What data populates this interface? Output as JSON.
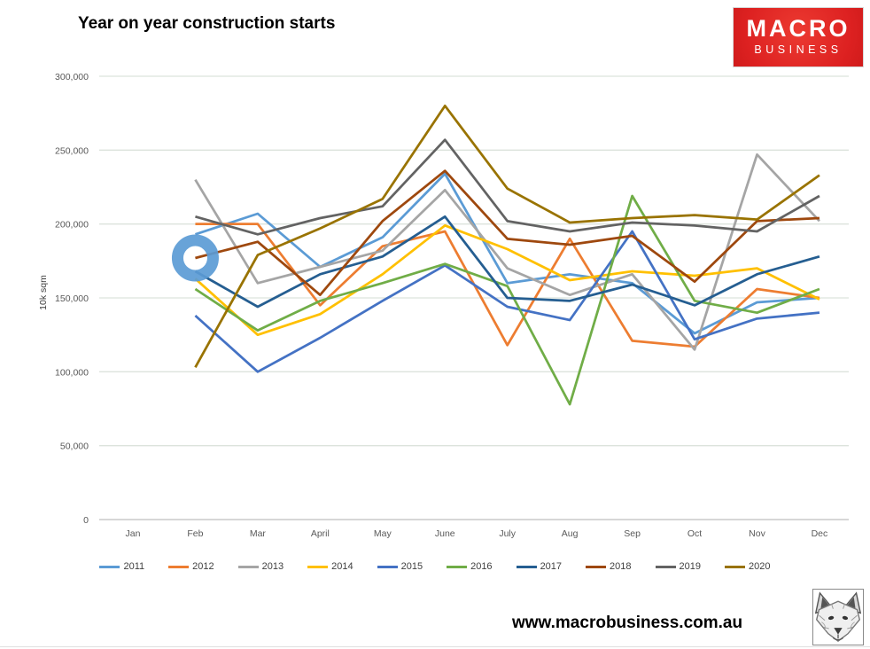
{
  "title": "Year on year construction starts",
  "logo": {
    "line1": "MACRO",
    "line2": "BUSINESS",
    "bg_color": "#dd2121",
    "text_color": "#ffffff"
  },
  "footer": {
    "url": "www.macrobusiness.com.au"
  },
  "chart_data": {
    "type": "line",
    "title": "Year on year construction starts",
    "xlabel": "",
    "ylabel": "10k sqm",
    "categories": [
      "Jan",
      "Feb",
      "Mar",
      "April",
      "May",
      "June",
      "July",
      "Aug",
      "Sep",
      "Oct",
      "Nov",
      "Dec"
    ],
    "y_tick_labels": [
      "0",
      "50,000",
      "100,000",
      "150,000",
      "200,000",
      "250,000",
      "300,000"
    ],
    "ylim": [
      0,
      300000
    ],
    "values_unit": "thousands (multiply by 1,000 to match axis)",
    "grid": true,
    "legend_position": "bottom",
    "gridline_color": "#dce3dc",
    "axis_line_color": "#bfbfbf",
    "tick_label_color": "#595959",
    "series": [
      {
        "name": "2011",
        "color": "#5B9BD5",
        "values": [
          null,
          193,
          207,
          171,
          191,
          234,
          160,
          166,
          160,
          126,
          147,
          150
        ]
      },
      {
        "name": "2012",
        "color": "#ED7D31",
        "values": [
          null,
          200,
          200,
          145,
          185,
          195,
          118,
          190,
          121,
          117,
          156,
          150
        ]
      },
      {
        "name": "2013",
        "color": "#A5A5A5",
        "values": [
          null,
          230,
          160,
          171,
          182,
          223,
          170,
          152,
          166,
          115,
          247,
          202
        ]
      },
      {
        "name": "2014",
        "color": "#FFC000",
        "values": [
          null,
          163,
          125,
          139,
          166,
          199,
          183,
          162,
          168,
          165,
          170,
          149
        ]
      },
      {
        "name": "2015",
        "color": "#4472C4",
        "values": [
          null,
          138,
          100,
          123,
          148,
          172,
          144,
          135,
          195,
          122,
          136,
          140
        ]
      },
      {
        "name": "2016",
        "color": "#70AD47",
        "values": [
          null,
          156,
          128,
          148,
          160,
          173,
          158,
          78,
          219,
          148,
          140,
          156
        ]
      },
      {
        "name": "2017",
        "color": "#255E91",
        "values": [
          null,
          168,
          144,
          166,
          178,
          205,
          150,
          148,
          159,
          145,
          166,
          178
        ]
      },
      {
        "name": "2018",
        "color": "#9E480E",
        "values": [
          null,
          177,
          188,
          152,
          202,
          236,
          190,
          186,
          192,
          161,
          202,
          204
        ]
      },
      {
        "name": "2019",
        "color": "#636363",
        "values": [
          null,
          205,
          193,
          204,
          212,
          257,
          202,
          195,
          201,
          199,
          195,
          219
        ]
      },
      {
        "name": "2020",
        "color": "#997300",
        "values": [
          null,
          103,
          179,
          197,
          217,
          280,
          224,
          201,
          204,
          206,
          203,
          233
        ]
      }
    ],
    "annotation": {
      "type": "circle-highlight",
      "series": "2018",
      "category": "Feb",
      "value": 177,
      "color": "#5B9BD5"
    }
  }
}
